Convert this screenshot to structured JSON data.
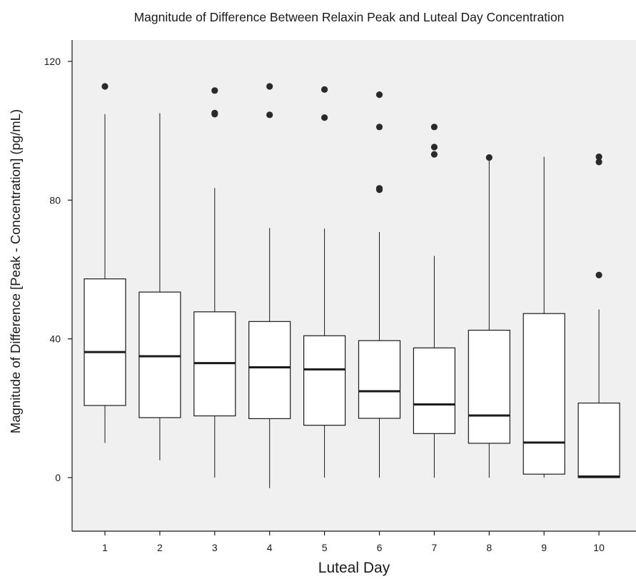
{
  "chart_data": {
    "type": "boxplot",
    "title": "Magnitude of Difference Between Relaxin Peak and Luteal Day Concentration",
    "xlabel": "Luteal Day",
    "ylabel": "Magnitude of Difference [Peak - Concentration] (pg/mL)",
    "ylim": [
      -16,
      126
    ],
    "yticks": [
      0,
      40,
      80,
      120
    ],
    "categories": [
      "1",
      "2",
      "3",
      "4",
      "5",
      "6",
      "7",
      "8",
      "9",
      "10"
    ],
    "boxes": [
      {
        "category": "1",
        "whisker_low": 10,
        "q1": 20.8,
        "median": 36.2,
        "q3": 57.3,
        "whisker_high": 104.8,
        "outliers": [
          112.8
        ]
      },
      {
        "category": "2",
        "whisker_low": 5,
        "q1": 17.3,
        "median": 35.0,
        "q3": 53.5,
        "whisker_high": 105.1,
        "outliers": []
      },
      {
        "category": "3",
        "whisker_low": 0,
        "q1": 17.8,
        "median": 33.0,
        "q3": 47.8,
        "whisker_high": 83.5,
        "outliers": [
          104.8,
          105.1,
          111.6
        ]
      },
      {
        "category": "4",
        "whisker_low": -3,
        "q1": 17.0,
        "median": 31.8,
        "q3": 45.0,
        "whisker_high": 72.0,
        "outliers": [
          104.6,
          112.8
        ]
      },
      {
        "category": "5",
        "whisker_low": 0,
        "q1": 15.1,
        "median": 31.2,
        "q3": 40.9,
        "whisker_high": 71.8,
        "outliers": [
          103.8,
          111.9
        ]
      },
      {
        "category": "6",
        "whisker_low": 0,
        "q1": 17.1,
        "median": 24.9,
        "q3": 39.5,
        "whisker_high": 70.8,
        "outliers": [
          83.0,
          83.4,
          101.1,
          110.4
        ]
      },
      {
        "category": "7",
        "whisker_low": 0,
        "q1": 12.7,
        "median": 21.1,
        "q3": 37.4,
        "whisker_high": 63.9,
        "outliers": [
          93.2,
          95.3,
          101.1
        ]
      },
      {
        "category": "8",
        "whisker_low": 0,
        "q1": 9.9,
        "median": 17.9,
        "q3": 42.5,
        "whisker_high": 91.8,
        "outliers": [
          92.3
        ]
      },
      {
        "category": "9",
        "whisker_low": 0,
        "q1": 1.0,
        "median": 10.1,
        "q3": 47.3,
        "whisker_high": 92.5,
        "outliers": []
      },
      {
        "category": "10",
        "whisker_low": 0,
        "q1": 0,
        "median": 0.3,
        "q3": 21.5,
        "whisker_high": 48.5,
        "outliers": [
          58.4,
          91.0,
          92.5
        ]
      }
    ],
    "grid": false,
    "legend": "none",
    "colors": {
      "plot_background": "#f0f0f0",
      "box_fill": "#ffffff",
      "line": "#1a1a1a",
      "outlier": "#2a2a2a"
    }
  }
}
